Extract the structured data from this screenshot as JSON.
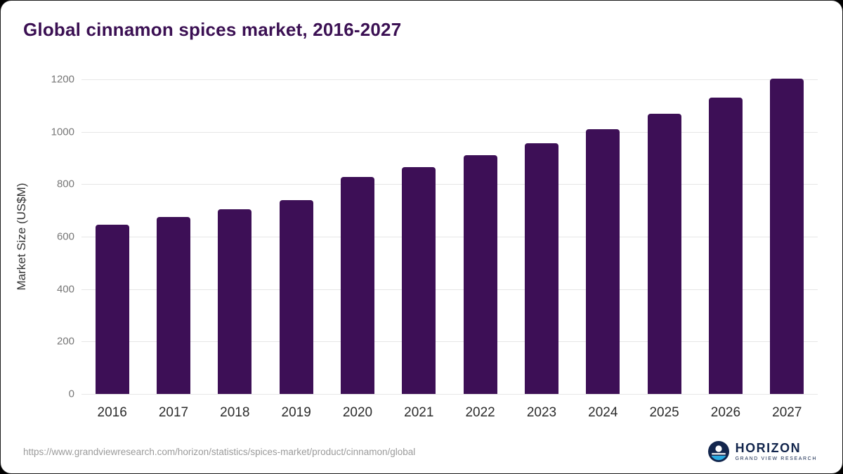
{
  "title": "Global cinnamon spices market, 2016-2027",
  "chart_data": {
    "type": "bar",
    "title": "Global cinnamon spices market, 2016-2027",
    "categories": [
      "2016",
      "2017",
      "2018",
      "2019",
      "2020",
      "2021",
      "2022",
      "2023",
      "2024",
      "2025",
      "2026",
      "2027"
    ],
    "values": [
      645,
      676,
      705,
      740,
      828,
      866,
      910,
      957,
      1011,
      1068,
      1131,
      1203
    ],
    "xlabel": "",
    "ylabel": "Market Size (US$M)",
    "ylim": [
      0,
      1200
    ],
    "yticks": [
      0,
      200,
      400,
      600,
      800,
      1000,
      1200
    ],
    "grid": true,
    "legend": "none",
    "bar_color": "#3d0f56"
  },
  "colors": {
    "title": "#3b1053",
    "bar": "#3d0f56",
    "gridline": "#e6e6e6",
    "tick_label": "#777777",
    "x_label": "#2b2b2b",
    "logo_navy": "#13264d",
    "logo_cyan": "#29aae1"
  },
  "footer": {
    "source_url": "https://www.grandviewresearch.com/horizon/statistics/spices-market/product/cinnamon/global",
    "logo_title": "HORIZON",
    "logo_subtitle": "GRAND VIEW RESEARCH"
  }
}
